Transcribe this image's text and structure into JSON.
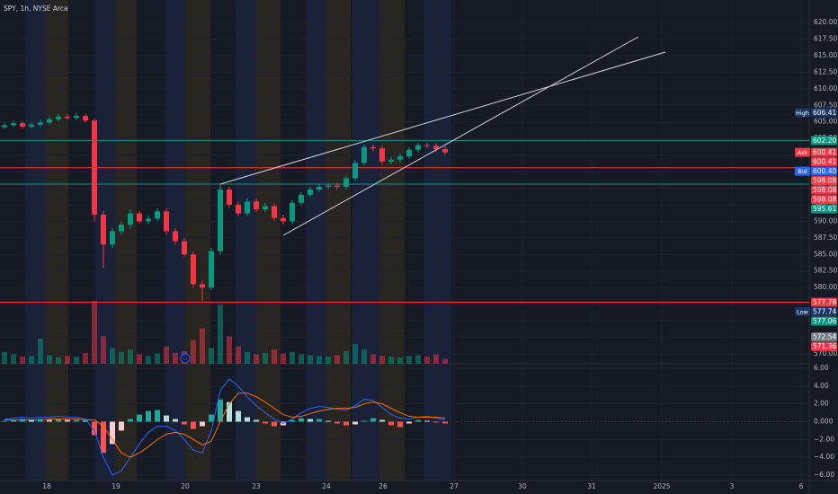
{
  "chart_data": {
    "type": "candlestick",
    "title": "SPY, 1h, NYSE Arca",
    "dividend_marker": "D",
    "up_color": "#089981",
    "down_color": "#f23645",
    "xlim": [
      -0.5,
      89.5
    ],
    "xticks": [
      {
        "value": 4.7,
        "label": "18"
      },
      {
        "value": 12.4,
        "label": "19"
      },
      {
        "value": 20.1,
        "label": "20"
      },
      {
        "value": 28,
        "label": "23"
      },
      {
        "value": 35.8,
        "label": "24"
      },
      {
        "value": 42.1,
        "label": "26"
      },
      {
        "value": 50,
        "label": "27"
      },
      {
        "value": 57.6,
        "label": "30"
      },
      {
        "value": 65.3,
        "label": "31"
      },
      {
        "value": 73.1,
        "label": "2025"
      },
      {
        "value": 80.9,
        "label": "3"
      },
      {
        "value": 88.6,
        "label": "6"
      }
    ],
    "ylim": [
      568.5,
      623.4
    ],
    "yticks": [
      {
        "value": 570,
        "label": "570.00"
      },
      {
        "value": 572.5,
        "label": "572.50"
      },
      {
        "value": 575,
        "label": "575.00"
      },
      {
        "value": 577.5,
        "label": "577.50"
      },
      {
        "value": 580,
        "label": "580.00"
      },
      {
        "value": 582.5,
        "label": "582.50"
      },
      {
        "value": 585,
        "label": "585.00"
      },
      {
        "value": 587.5,
        "label": "587.50"
      },
      {
        "value": 590,
        "label": "590.00"
      },
      {
        "value": 592.5,
        "label": "592.50"
      },
      {
        "value": 595,
        "label": "595.00"
      },
      {
        "value": 597.5,
        "label": "597.50"
      },
      {
        "value": 600,
        "label": "600.00"
      },
      {
        "value": 602.5,
        "label": "602.50"
      },
      {
        "value": 605,
        "label": "605.00"
      },
      {
        "value": 607.5,
        "label": "607.50"
      },
      {
        "value": 610,
        "label": "610.00"
      },
      {
        "value": 612.5,
        "label": "612.50"
      },
      {
        "value": 615,
        "label": "615.00"
      },
      {
        "value": 617.5,
        "label": "617.50"
      },
      {
        "value": 620,
        "label": "620.00"
      }
    ],
    "open": [
      604.2,
      604.5,
      604.8,
      604.3,
      604.6,
      604.9,
      605.4,
      605.8,
      605.6,
      605.9,
      605.2,
      591.0,
      586.5,
      588.5,
      589.5,
      591.2,
      590.0,
      590.4,
      591.5,
      588.5,
      587.0,
      585.0,
      580.5,
      580.0,
      585.5,
      594.8,
      592.5,
      591.2,
      593.0,
      591.8,
      592.3,
      590.5,
      590.0,
      592.8,
      594.0,
      594.8,
      595.2,
      595.4,
      595.2,
      596.5,
      598.8,
      601.2,
      601.0,
      599.0,
      599.3,
      599.8,
      600.8,
      601.5,
      601.4,
      600.9
    ],
    "high": [
      604.9,
      605.2,
      605.1,
      604.9,
      605.3,
      605.8,
      606.2,
      606.1,
      606.4,
      606.2,
      605.5,
      591.6,
      589.0,
      590.0,
      591.8,
      591.6,
      590.9,
      592.0,
      591.9,
      589.0,
      587.5,
      585.4,
      581.0,
      586.0,
      595.5,
      595.2,
      593.0,
      593.5,
      593.4,
      592.8,
      592.7,
      591.0,
      593.2,
      594.4,
      595.2,
      595.6,
      595.8,
      595.8,
      596.9,
      599.2,
      601.6,
      601.6,
      601.4,
      599.7,
      600.2,
      601.2,
      601.9,
      601.8,
      601.8,
      601.3
    ],
    "low": [
      603.9,
      604.2,
      604.0,
      604.0,
      604.3,
      604.6,
      605.1,
      605.3,
      605.3,
      604.9,
      590.0,
      583.0,
      586.0,
      588.0,
      589.0,
      589.6,
      589.6,
      590.0,
      588.0,
      586.5,
      584.6,
      580.0,
      578.0,
      579.6,
      585.0,
      592.0,
      590.8,
      590.8,
      591.4,
      591.4,
      590.1,
      589.5,
      589.6,
      592.4,
      593.6,
      594.4,
      594.8,
      594.8,
      594.8,
      596.1,
      598.4,
      600.6,
      598.6,
      598.6,
      598.9,
      599.4,
      600.4,
      601.0,
      600.5,
      600.0
    ],
    "close": [
      604.5,
      604.8,
      604.3,
      604.6,
      604.9,
      605.4,
      605.8,
      605.6,
      605.9,
      605.2,
      591.0,
      586.5,
      588.5,
      589.5,
      591.2,
      590.0,
      590.4,
      591.5,
      588.5,
      587.0,
      585.0,
      580.5,
      580.0,
      585.5,
      594.8,
      592.5,
      591.2,
      593.0,
      591.8,
      592.3,
      590.5,
      590.0,
      592.8,
      594.0,
      594.8,
      595.2,
      595.4,
      595.2,
      596.5,
      598.8,
      601.2,
      601.0,
      599.0,
      599.3,
      599.8,
      600.8,
      601.5,
      601.4,
      600.9,
      600.4
    ],
    "volume": [
      1.5,
      1.2,
      0.9,
      1.0,
      3.2,
      1.1,
      0.8,
      1.0,
      0.9,
      1.4,
      8.0,
      3.5,
      2.0,
      1.5,
      1.8,
      1.2,
      1.0,
      1.3,
      2.2,
      1.4,
      1.6,
      3.0,
      4.5,
      2.0,
      7.5,
      3.5,
      2.2,
      1.5,
      1.2,
      1.4,
      1.8,
      1.3,
      1.5,
      1.2,
      1.1,
      1.0,
      0.9,
      1.1,
      1.6,
      2.5,
      1.8,
      1.2,
      1.0,
      0.9,
      0.8,
      1.0,
      1.1,
      0.9,
      1.2,
      0.6
    ],
    "markers": [
      {
        "tag": "High",
        "value": 606.41,
        "label": "606.41",
        "color": "#1c3764"
      },
      {
        "value": 602.2,
        "label": "602.20",
        "color": "#089981",
        "line": true
      },
      {
        "tag": "Ask",
        "value": 600.41,
        "label": "600.41",
        "color": "#f23645"
      },
      {
        "value": 600.41,
        "label": "600.41",
        "color": "#f23645"
      },
      {
        "tag": "Bid",
        "value": 600.4,
        "label": "600.40",
        "color": "#2962ff"
      },
      {
        "value": 598.08,
        "label": "598.08",
        "color": "#f23645",
        "line": true
      },
      {
        "value": 598.08,
        "label": "598.08",
        "color": "#f23645"
      },
      {
        "value": 598.08,
        "label": "598.08",
        "color": "#f23645"
      },
      {
        "value": 595.61,
        "label": "595.61",
        "color": "#089981",
        "line": true
      },
      {
        "value": 577.78,
        "label": "577.78",
        "color": "#f23645",
        "line": true
      },
      {
        "tag": "Low",
        "value": 577.74,
        "label": "577.74",
        "color": "#1c3764"
      },
      {
        "value": 577.06,
        "label": "577.06",
        "color": "#089981"
      },
      {
        "value": 572.54,
        "label": "572.54",
        "color": "#787b86"
      },
      {
        "value": 571.36,
        "label": "571.36",
        "color": "#f23645"
      }
    ],
    "macd_panel": {
      "ylim": [
        -6.6,
        6.5
      ],
      "yticks": [
        {
          "value": 6,
          "label": "6.00"
        },
        {
          "value": 4,
          "label": "4.00"
        },
        {
          "value": 2,
          "label": "2.00"
        },
        {
          "value": 0,
          "label": "0.000"
        },
        {
          "value": -2,
          "label": "−2.00"
        },
        {
          "value": -4,
          "label": "−4.00"
        },
        {
          "value": -6,
          "label": "−6.00"
        }
      ],
      "histogram": [
        0.1,
        0.2,
        0.3,
        0.2,
        0.3,
        0.2,
        0.3,
        0.2,
        0.2,
        0.1,
        -1.5,
        -3.5,
        -2.5,
        -1.0,
        0.3,
        0.8,
        1.2,
        1.3,
        0.7,
        0.3,
        -0.3,
        -0.8,
        -0.5,
        0.8,
        2.5,
        2.2,
        1.2,
        0.5,
        0.2,
        -0.2,
        -0.5,
        -0.4,
        0.2,
        0.4,
        0.3,
        0.3,
        0.1,
        -0.2,
        -0.4,
        -0.3,
        0.1,
        0.4,
        0.2,
        -0.4,
        -0.6,
        -0.2,
        0.2,
        0.1,
        -0.1,
        -0.2
      ],
      "macd_color": "#2962ff",
      "signal_color": "#ff6d00",
      "macd": [
        0.3,
        0.4,
        0.5,
        0.4,
        0.5,
        0.5,
        0.6,
        0.5,
        0.5,
        0.3,
        -1.0,
        -4.0,
        -6.0,
        -5.5,
        -4.0,
        -2.5,
        -1.2,
        -0.5,
        -0.5,
        -1.0,
        -2.0,
        -3.2,
        -3.5,
        -1.0,
        3.5,
        4.8,
        4.0,
        2.8,
        1.8,
        1.0,
        0.3,
        -0.2,
        0.3,
        1.0,
        1.5,
        1.7,
        1.6,
        1.4,
        1.3,
        1.8,
        2.5,
        2.4,
        1.6,
        0.8,
        0.4,
        0.3,
        0.5,
        0.6,
        0.4,
        0.2
      ],
      "signal": [
        0.2,
        0.2,
        0.2,
        0.2,
        0.2,
        0.3,
        0.3,
        0.3,
        0.3,
        0.2,
        0.2,
        -0.5,
        -2.0,
        -3.5,
        -4.0,
        -3.5,
        -2.8,
        -2.0,
        -1.4,
        -1.2,
        -1.4,
        -2.0,
        -2.6,
        -2.2,
        0.0,
        2.0,
        3.2,
        3.2,
        2.8,
        2.2,
        1.5,
        0.8,
        0.5,
        0.6,
        0.9,
        1.2,
        1.4,
        1.5,
        1.5,
        1.6,
        2.0,
        2.2,
        2.0,
        1.5,
        1.0,
        0.6,
        0.5,
        0.5,
        0.5,
        0.4
      ]
    }
  }
}
